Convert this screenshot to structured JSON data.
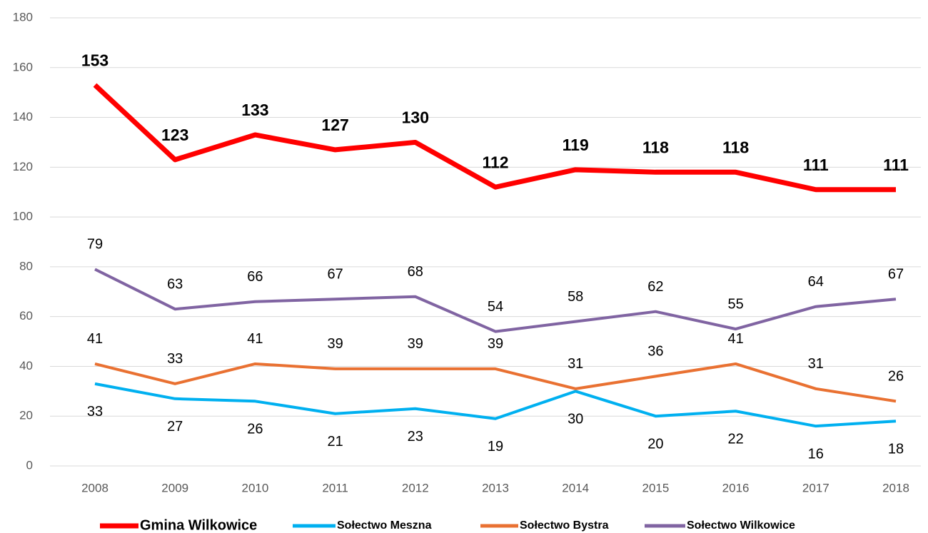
{
  "chart_data": {
    "type": "line",
    "categories": [
      "2008",
      "2009",
      "2010",
      "2011",
      "2012",
      "2013",
      "2014",
      "2015",
      "2016",
      "2017",
      "2018"
    ],
    "series": [
      {
        "name": "Gmina Wilkowice",
        "color": "#ff0000",
        "values": [
          153,
          123,
          133,
          127,
          130,
          112,
          119,
          118,
          118,
          111,
          111
        ]
      },
      {
        "name": "Sołectwo Meszna",
        "color": "#00b0f0",
        "values": [
          33,
          27,
          26,
          21,
          23,
          19,
          30,
          20,
          22,
          16,
          18
        ]
      },
      {
        "name": "Sołectwo Bystra",
        "color": "#e97132",
        "values": [
          41,
          33,
          41,
          39,
          39,
          39,
          31,
          36,
          41,
          31,
          26
        ]
      },
      {
        "name": "Sołectwo Wilkowice",
        "color": "#8064a2",
        "values": [
          79,
          63,
          66,
          67,
          68,
          54,
          58,
          62,
          55,
          64,
          67
        ]
      }
    ],
    "ylim": [
      0,
      180
    ],
    "yticks": [
      0,
      20,
      40,
      60,
      80,
      100,
      120,
      140,
      160,
      180
    ],
    "grid": true,
    "legend": "bottom"
  }
}
